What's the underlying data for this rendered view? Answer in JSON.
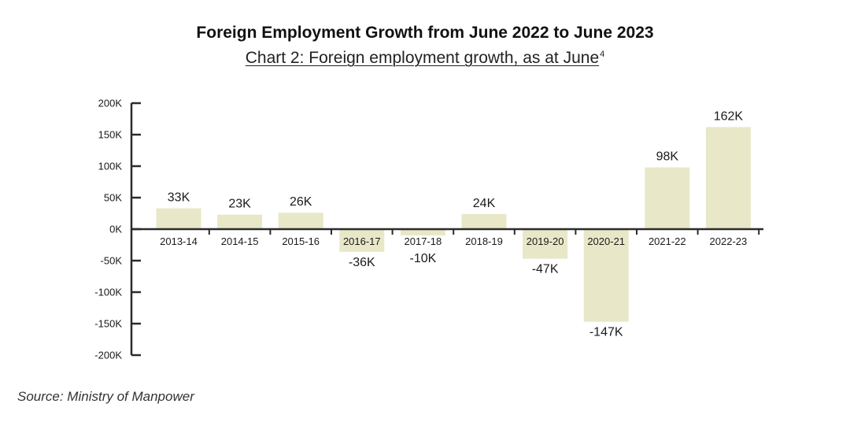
{
  "header": {
    "title": "Foreign Employment Growth from June 2022 to June 2023",
    "subtitle": "Chart 2: Foreign employment growth, as at June",
    "subtitle_footnote": "4"
  },
  "footer": {
    "source": "Source: Ministry of Manpower"
  },
  "colors": {
    "bar": "#e8e7c8",
    "axis": "#2b2b2b",
    "text": "#1a1a1a"
  },
  "chart_data": {
    "type": "bar",
    "title": "Foreign Employment Growth from June 2022 to June 2023",
    "subtitle": "Chart 2: Foreign employment growth, as at June",
    "categories": [
      "2013-14",
      "2014-15",
      "2015-16",
      "2016-17",
      "2017-18",
      "2018-19",
      "2019-20",
      "2020-21",
      "2021-22",
      "2022-23"
    ],
    "values": [
      33000,
      23000,
      26000,
      -36000,
      -10000,
      24000,
      -47000,
      -147000,
      98000,
      162000
    ],
    "data_labels": [
      "33K",
      "23K",
      "26K",
      "-36K",
      "-10K",
      "24K",
      "-47K",
      "-147K",
      "98K",
      "162K"
    ],
    "yticks": [
      200000,
      150000,
      100000,
      50000,
      0,
      -50000,
      -100000,
      -150000,
      -200000
    ],
    "ytick_labels": [
      "200K",
      "150K",
      "100K",
      "50K",
      "0K",
      "-50K",
      "-100K",
      "-150K",
      "-200K"
    ],
    "ylim": [
      -200000,
      200000
    ],
    "xlabel": "",
    "ylabel": "",
    "grid": false,
    "legend": "none"
  }
}
